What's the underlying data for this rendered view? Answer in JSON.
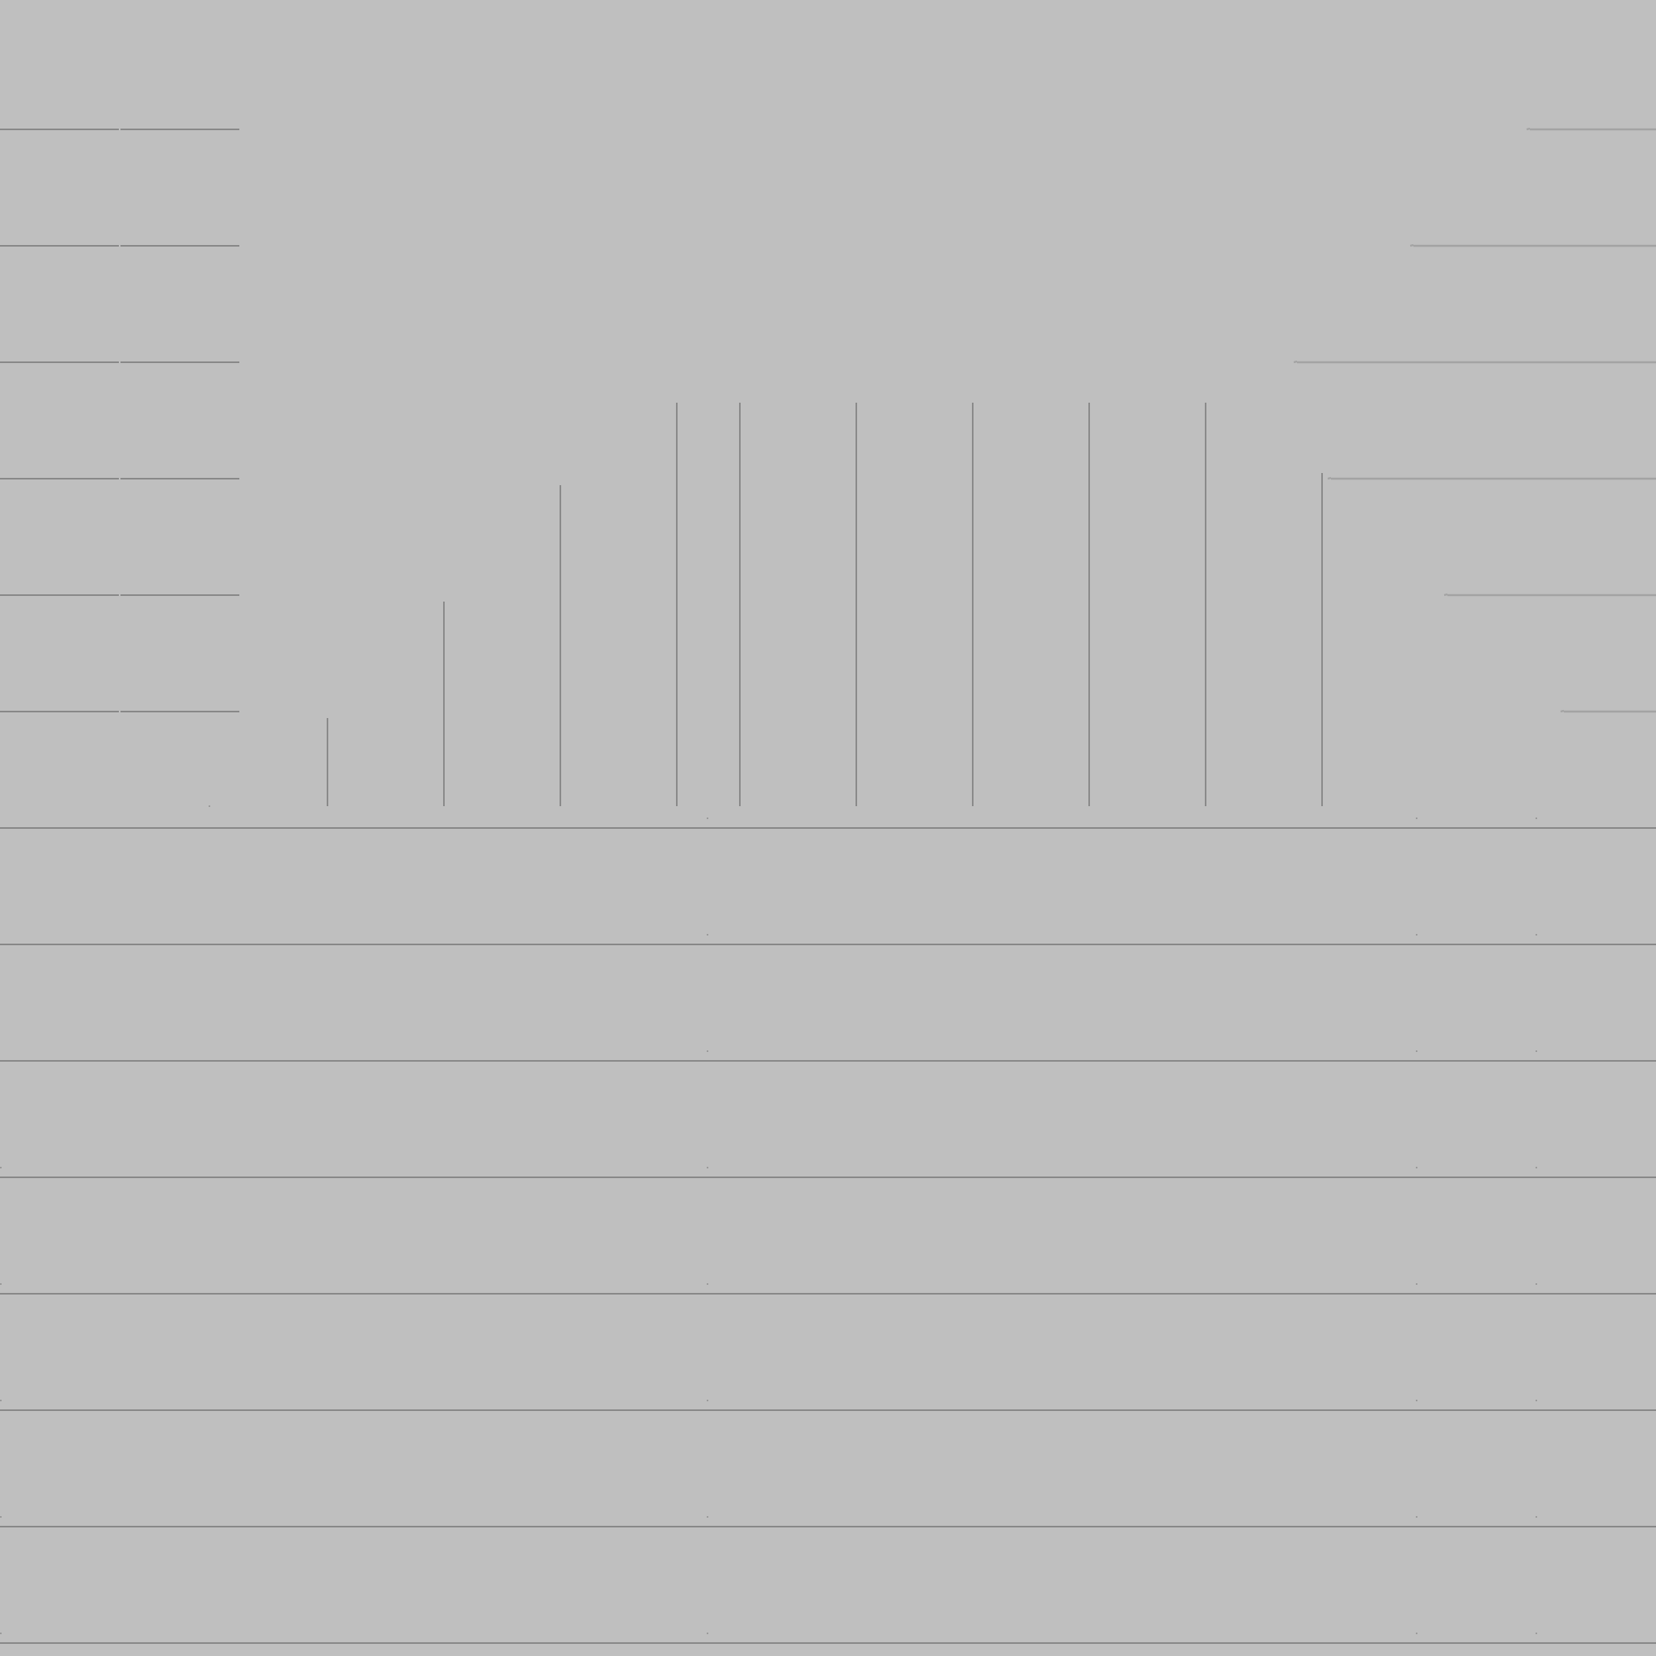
{
  "colors": {
    "background": "#bfbfbf",
    "line_dark": "#777777",
    "line_medium": "#8a8a8a",
    "line_light": "#a3a3a3",
    "dot": "#9a9a9a"
  }
}
